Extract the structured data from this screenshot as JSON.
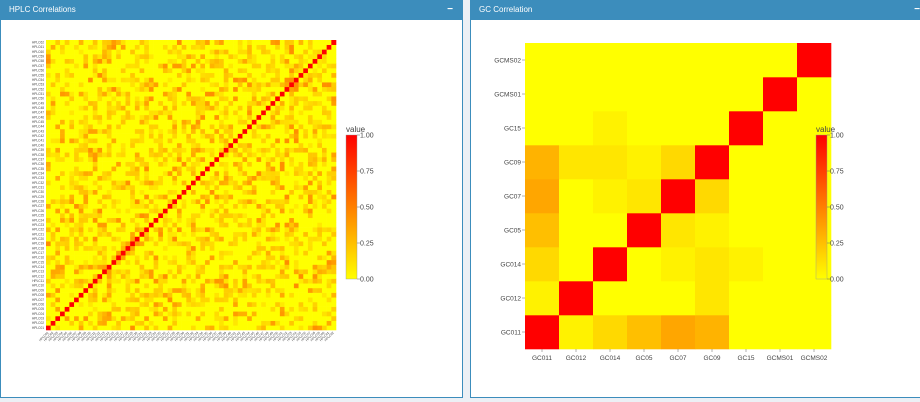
{
  "panels": {
    "hplc": {
      "title": "HPLC Correlations",
      "collapse_label": "−"
    },
    "gc": {
      "title": "GC Correlation",
      "collapse_label": "−"
    }
  },
  "legend": {
    "title": "value",
    "ticks": [
      "1.00",
      "0.75",
      "0.50",
      "0.25",
      "0.00"
    ]
  },
  "colors": {
    "header": "#3c8dbc",
    "low": "#ffff00",
    "high": "#ff0000"
  },
  "chart_data": [
    {
      "type": "heatmap",
      "title": "",
      "n_labels": 62,
      "labels": [
        "HPLC01",
        "HPLC02",
        "HPLC03",
        "HPLC04",
        "HPLC05",
        "HPLC06",
        "HPLC07",
        "HPLC08",
        "HPLC09",
        "HPLC10",
        "HPLC11",
        "HPLC12",
        "HPLC13",
        "HPLC14",
        "HPLC15",
        "HPLC16",
        "HPLC17",
        "HPLC18",
        "HPLC19",
        "HPLC20",
        "HPLC21",
        "HPLC22",
        "HPLC23",
        "HPLC24",
        "HPLC25",
        "HPLC26",
        "HPLC27",
        "HPLC28",
        "HPLC29",
        "HPLC30",
        "HPLC31",
        "HPLC32",
        "HPLC33",
        "HPLC34",
        "HPLC35",
        "HPLC36",
        "HPLC37",
        "HPLC38",
        "HPLC39",
        "HPLC40",
        "HPLC41",
        "HPLC42",
        "HPLC43",
        "HPLC44",
        "HPLC45",
        "HPLC46",
        "HPLC47",
        "HPLC48",
        "HPLC49",
        "HPLC50",
        "HPLC51",
        "HPLC52",
        "HPLC53",
        "HPLC54",
        "HPLC55",
        "HPLC56",
        "HPLC57",
        "HPLC58",
        "HPLC59",
        "HPLC60",
        "HPLC61",
        "HPLC62"
      ],
      "value_range": [
        0,
        1
      ],
      "diagonal": 1.0
    },
    {
      "type": "heatmap",
      "title": "",
      "x": [
        "GC011",
        "GC012",
        "GC014",
        "GC05",
        "GC07",
        "GC09",
        "GC15",
        "GCMS01",
        "GCMS02"
      ],
      "y": [
        "GC011",
        "GC012",
        "GC014",
        "GC05",
        "GC07",
        "GC09",
        "GC15",
        "GCMS01",
        "GCMS02"
      ],
      "value_range": [
        0,
        1
      ],
      "values": [
        [
          1.0,
          0.05,
          0.15,
          0.25,
          0.35,
          0.3,
          0.0,
          0.0,
          0.0
        ],
        [
          0.05,
          1.0,
          0.0,
          0.0,
          0.0,
          0.1,
          0.0,
          0.0,
          0.0
        ],
        [
          0.15,
          0.0,
          1.0,
          0.0,
          0.05,
          0.1,
          0.05,
          0.0,
          0.0
        ],
        [
          0.25,
          0.0,
          0.0,
          1.0,
          0.1,
          0.05,
          0.0,
          0.0,
          0.0
        ],
        [
          0.35,
          0.0,
          0.05,
          0.1,
          1.0,
          0.15,
          0.0,
          0.0,
          0.0
        ],
        [
          0.3,
          0.1,
          0.1,
          0.05,
          0.15,
          1.0,
          0.0,
          0.0,
          0.0
        ],
        [
          0.0,
          0.0,
          0.05,
          0.0,
          0.0,
          0.0,
          1.0,
          0.0,
          0.0
        ],
        [
          0.0,
          0.0,
          0.0,
          0.0,
          0.0,
          0.0,
          0.0,
          1.0,
          0.0
        ],
        [
          0.0,
          0.0,
          0.0,
          0.0,
          0.0,
          0.0,
          0.0,
          0.0,
          1.0
        ]
      ]
    }
  ]
}
